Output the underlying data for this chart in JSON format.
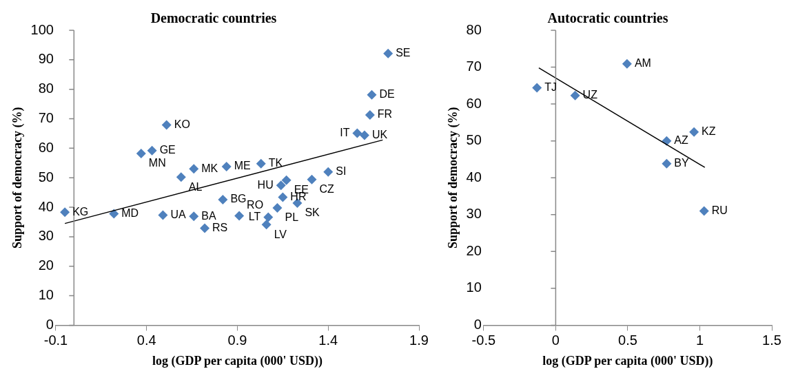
{
  "chart_data": [
    {
      "type": "scatter",
      "title": "Democratic countries",
      "xlabel": "log (GDP per capita (000' USD))",
      "ylabel": "Support of democracy (%)",
      "xlim": [
        -0.1,
        1.9
      ],
      "xticks": [
        -0.1,
        0.4,
        0.9,
        1.4,
        1.9
      ],
      "ylim": [
        0,
        100
      ],
      "yticks": [
        0,
        10,
        20,
        30,
        40,
        50,
        60,
        70,
        80,
        90,
        100
      ],
      "marker": "diamond",
      "legend": false,
      "series": [
        {
          "color": "#4f81bd",
          "x": [
            -0.05,
            0.22,
            0.37,
            0.43,
            0.51,
            0.59,
            0.66,
            0.49,
            0.66,
            0.72,
            0.82,
            0.84,
            0.91,
            1.03,
            1.17,
            1.14,
            1.15,
            1.12,
            1.07,
            1.06,
            1.31,
            1.23,
            1.4,
            1.56,
            1.6,
            1.63,
            1.64,
            1.73
          ],
          "values": [
            38.3,
            37.8,
            58.2,
            59.2,
            67.9,
            50.2,
            53.0,
            37.3,
            36.9,
            32.9,
            42.6,
            53.8,
            37.1,
            54.8,
            49.2,
            47.4,
            43.4,
            39.8,
            36.6,
            34.1,
            49.4,
            41.4,
            52.0,
            65.1,
            64.4,
            71.3,
            78.1,
            92.1
          ]
        },
        {
          "type": "line",
          "marker": "none",
          "color": "#000000",
          "x": [
            -0.05,
            1.7
          ],
          "values": [
            34.5,
            62.8
          ]
        }
      ],
      "annotations": [
        {
          "text": "KG",
          "x": -0.05,
          "y": 38.3
        },
        {
          "text": "MD",
          "x": 0.22,
          "y": 37.8
        },
        {
          "text": "MN",
          "x": 0.37,
          "y": 58.2
        },
        {
          "text": "GE",
          "x": 0.43,
          "y": 59.2
        },
        {
          "text": "KO",
          "x": 0.51,
          "y": 67.9
        },
        {
          "text": "AL",
          "x": 0.59,
          "y": 50.2
        },
        {
          "text": "MK",
          "x": 0.66,
          "y": 53.0
        },
        {
          "text": "UA",
          "x": 0.49,
          "y": 37.3
        },
        {
          "text": "BA",
          "x": 0.66,
          "y": 36.9
        },
        {
          "text": "RS",
          "x": 0.72,
          "y": 32.9
        },
        {
          "text": "BG",
          "x": 0.82,
          "y": 42.6
        },
        {
          "text": "ME",
          "x": 0.84,
          "y": 53.8
        },
        {
          "text": "RO",
          "x": 0.91,
          "y": 37.1
        },
        {
          "text": "TK",
          "x": 1.03,
          "y": 54.8
        },
        {
          "text": "EE",
          "x": 1.17,
          "y": 49.2
        },
        {
          "text": "HU",
          "x": 1.14,
          "y": 47.4
        },
        {
          "text": "HR",
          "x": 1.15,
          "y": 43.4
        },
        {
          "text": "PL",
          "x": 1.12,
          "y": 39.8
        },
        {
          "text": "LT",
          "x": 1.07,
          "y": 36.6
        },
        {
          "text": "LV",
          "x": 1.06,
          "y": 34.1
        },
        {
          "text": "CZ",
          "x": 1.31,
          "y": 49.4
        },
        {
          "text": "SK",
          "x": 1.23,
          "y": 41.4
        },
        {
          "text": "SI",
          "x": 1.4,
          "y": 52.0
        },
        {
          "text": "IT",
          "x": 1.56,
          "y": 65.1
        },
        {
          "text": "UK",
          "x": 1.6,
          "y": 64.4
        },
        {
          "text": "FR",
          "x": 1.63,
          "y": 71.3
        },
        {
          "text": "DE",
          "x": 1.64,
          "y": 78.1
        },
        {
          "text": "SE",
          "x": 1.73,
          "y": 92.1
        }
      ]
    },
    {
      "type": "scatter",
      "title": "Autocratic countries",
      "xlabel": "log (GDP per capita (000' USD))",
      "ylabel": "Support of democracy (%)",
      "xlim": [
        -0.5,
        1.5
      ],
      "xticks": [
        -0.5,
        0,
        0.5,
        1,
        1.5
      ],
      "ylim": [
        0,
        80
      ],
      "yticks": [
        0,
        10,
        20,
        30,
        40,
        50,
        60,
        70,
        80
      ],
      "marker": "diamond",
      "legend": false,
      "series": [
        {
          "color": "#4f81bd",
          "x": [
            -0.13,
            0.135,
            0.495,
            0.77,
            0.77,
            0.96,
            1.03
          ],
          "values": [
            64.4,
            62.3,
            70.9,
            50.0,
            43.8,
            52.4,
            31.0
          ]
        },
        {
          "type": "line",
          "marker": "none",
          "color": "#000000",
          "x": [
            -0.117,
            1.035
          ],
          "values": [
            69.8,
            42.8
          ]
        }
      ],
      "annotations": [
        {
          "text": "TJ",
          "x": -0.13,
          "y": 64.4
        },
        {
          "text": "UZ",
          "x": 0.135,
          "y": 62.3
        },
        {
          "text": "AM",
          "x": 0.495,
          "y": 70.9
        },
        {
          "text": "AZ",
          "x": 0.77,
          "y": 50.0
        },
        {
          "text": "BY",
          "x": 0.77,
          "y": 43.8
        },
        {
          "text": "KZ",
          "x": 0.96,
          "y": 52.4
        },
        {
          "text": "RU",
          "x": 1.03,
          "y": 31.0
        }
      ]
    }
  ]
}
